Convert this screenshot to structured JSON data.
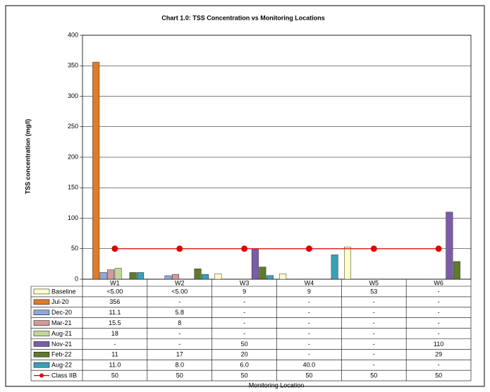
{
  "chart_data": {
    "type": "bar",
    "title": "Chart 1.0: TSS Concentration vs Monitoring Locations",
    "y_label": "TSS concentration (mg/l)",
    "x_label": "Monitoring Location",
    "categories": [
      "W1",
      "W2",
      "W3",
      "W4",
      "W5",
      "W6"
    ],
    "ylim": [
      0,
      400
    ],
    "yticks": [
      0,
      50,
      100,
      150,
      200,
      250,
      300,
      350,
      400
    ],
    "grid": true,
    "series": [
      {
        "name": "Baseline",
        "color": "#ffffcc",
        "values": [
          null,
          null,
          9,
          9,
          53,
          null
        ],
        "value_labels": [
          "<5.00",
          "<5.00",
          "9",
          "9",
          "53",
          "-"
        ]
      },
      {
        "name": "Jul-20",
        "color": "#e07b2a",
        "values": [
          356,
          null,
          null,
          null,
          null,
          null
        ],
        "value_labels": [
          "356",
          "-",
          "-",
          "-",
          "-",
          "-"
        ]
      },
      {
        "name": "Dec-20",
        "color": "#8fa8d8",
        "values": [
          11.1,
          5.8,
          null,
          null,
          null,
          null
        ],
        "value_labels": [
          "11.1",
          "5.8",
          "-",
          "-",
          "-",
          "-"
        ]
      },
      {
        "name": "Mar-21",
        "color": "#d49a9a",
        "values": [
          15.5,
          8,
          null,
          null,
          null,
          null
        ],
        "value_labels": [
          "15.5",
          "8",
          "-",
          "-",
          "-",
          "-"
        ]
      },
      {
        "name": "Aug-21",
        "color": "#c4d79b",
        "values": [
          18,
          null,
          null,
          null,
          null,
          null
        ],
        "value_labels": [
          "18",
          "-",
          "-",
          "-",
          "-",
          "-"
        ]
      },
      {
        "name": "Nov-21",
        "color": "#7c5ca8",
        "values": [
          null,
          null,
          50,
          null,
          null,
          110
        ],
        "value_labels": [
          "-",
          "-",
          "50",
          "-",
          "-",
          "110"
        ]
      },
      {
        "name": "Feb-22",
        "color": "#5f7a2e",
        "values": [
          11,
          17,
          20,
          null,
          null,
          29
        ],
        "value_labels": [
          "11",
          "17",
          "20",
          "-",
          "-",
          "29"
        ]
      },
      {
        "name": "Aug-22",
        "color": "#3aa0b8",
        "values": [
          11.0,
          8.0,
          6.0,
          40.0,
          null,
          null
        ],
        "value_labels": [
          "11.0",
          "8.0",
          "6.0",
          "40.0",
          "-",
          "-"
        ]
      },
      {
        "name": "Class IIB",
        "type": "line",
        "color": "#e00000",
        "values": [
          50,
          50,
          50,
          50,
          50,
          50
        ],
        "value_labels": [
          "50",
          "50",
          "50",
          "50",
          "50",
          "50"
        ]
      }
    ]
  }
}
